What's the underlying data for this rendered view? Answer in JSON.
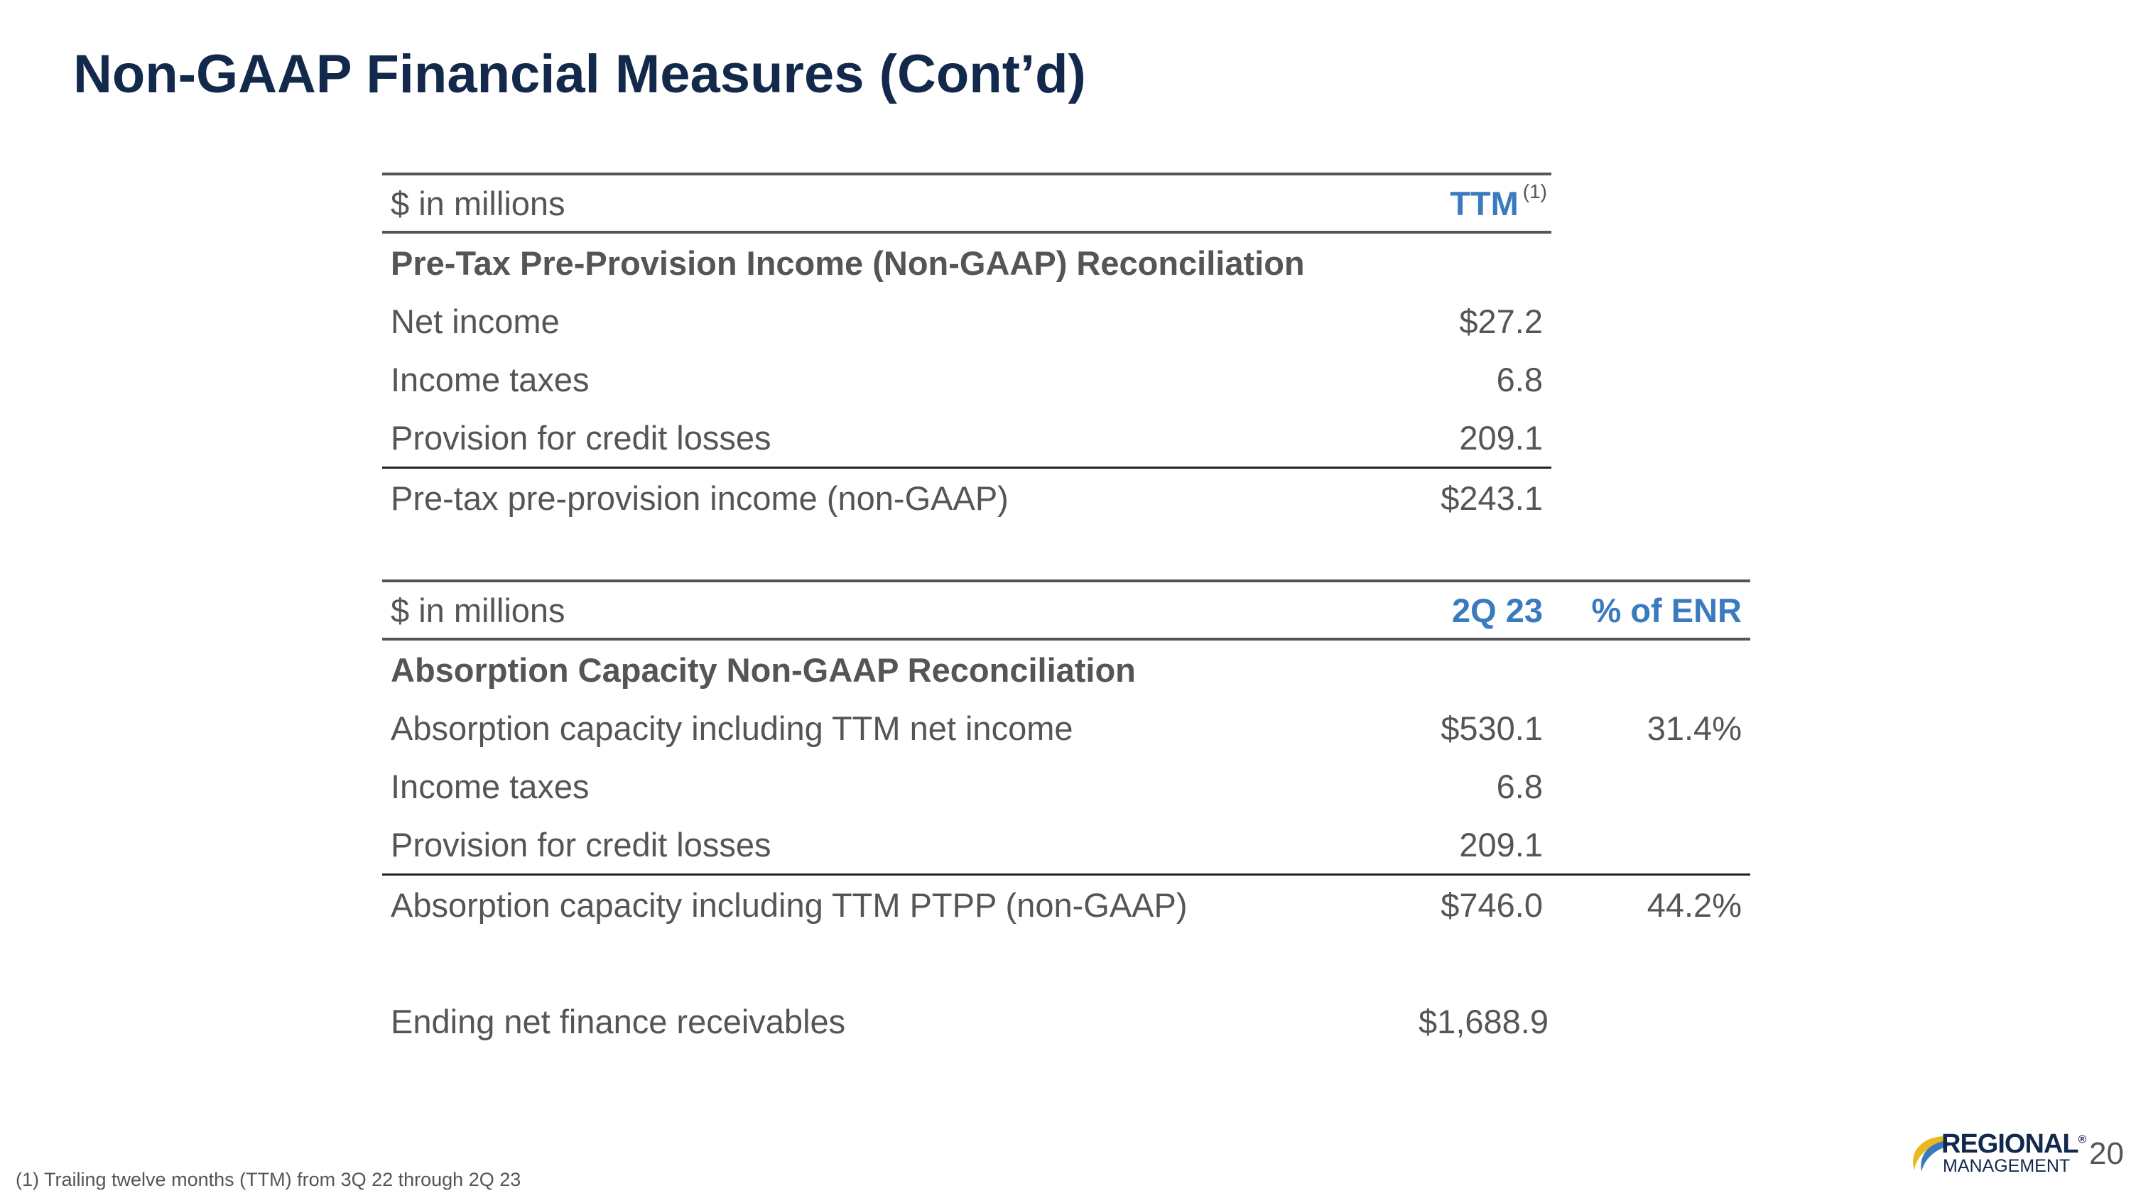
{
  "slide": {
    "title": "Non-GAAP Financial Measures (Cont’d)",
    "page_number": "20",
    "footnote": "(1) Trailing twelve months (TTM) from 3Q 22 through 2Q 23"
  },
  "ptpp_table": {
    "unit_label": "$ in millions",
    "column_header": "TTM",
    "column_footnote_marker": "(1)",
    "section_title": "Pre-Tax Pre-Provision Income (Non-GAAP) Reconciliation",
    "rows": [
      {
        "label": "Net income",
        "value": "$27.2"
      },
      {
        "label": "Income taxes",
        "value": "6.8"
      },
      {
        "label": "Provision for credit losses",
        "value": "209.1"
      }
    ],
    "total": {
      "label": "Pre-tax pre-provision income (non-GAAP)",
      "value": "$243.1"
    }
  },
  "absorption_table": {
    "unit_label": "$ in millions",
    "column_headers": [
      "2Q 23",
      "% of ENR"
    ],
    "section_title": "Absorption Capacity Non-GAAP Reconciliation",
    "rows": [
      {
        "label": "Absorption capacity including TTM net income",
        "value": "$530.1",
        "percent": "31.4%"
      },
      {
        "label": "Income taxes",
        "value": "6.8",
        "percent": ""
      },
      {
        "label": "Provision for credit losses",
        "value": "209.1",
        "percent": ""
      }
    ],
    "total": {
      "label": "Absorption capacity including TTM PTPP (non-GAAP)",
      "value": "$746.0",
      "percent": "44.2%"
    }
  },
  "ending_receivables": {
    "label": "Ending net finance receivables",
    "value": "$1,688.9"
  },
  "logo": {
    "line1": "REGIONAL",
    "line2": "MANAGEMENT",
    "mark": "®",
    "colors": {
      "navy": "#13294b",
      "gold": "#e8b923",
      "blue": "#3a7abf"
    }
  },
  "colors": {
    "title": "#13294b",
    "header_accent": "#3a7abf",
    "body_text": "#555555"
  }
}
